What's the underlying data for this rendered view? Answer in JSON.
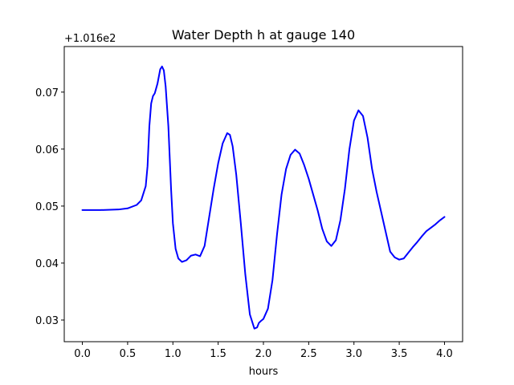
{
  "chart_data": {
    "type": "line",
    "title": "Water Depth h at gauge 140",
    "xlabel": "hours",
    "ylabel": "",
    "y_offset_label": "+1.016e2",
    "xlim": [
      -0.2,
      4.2
    ],
    "ylim": [
      0.0262,
      0.078
    ],
    "x_ticks": [
      0.0,
      0.5,
      1.0,
      1.5,
      2.0,
      2.5,
      3.0,
      3.5,
      4.0
    ],
    "x_tick_labels": [
      "0.0",
      "0.5",
      "1.0",
      "1.5",
      "2.0",
      "2.5",
      "3.0",
      "3.5",
      "4.0"
    ],
    "y_ticks": [
      0.03,
      0.04,
      0.05,
      0.06,
      0.07
    ],
    "y_tick_labels": [
      "0.03",
      "0.04",
      "0.05",
      "0.06",
      "0.07"
    ],
    "grid": false,
    "legend": "none",
    "series": [
      {
        "color": "#0000ff",
        "x": [
          0.0,
          0.2,
          0.4,
          0.5,
          0.6,
          0.65,
          0.7,
          0.72,
          0.74,
          0.76,
          0.78,
          0.8,
          0.83,
          0.86,
          0.88,
          0.9,
          0.92,
          0.95,
          0.98,
          1.0,
          1.03,
          1.06,
          1.1,
          1.15,
          1.2,
          1.25,
          1.3,
          1.35,
          1.4,
          1.45,
          1.5,
          1.55,
          1.6,
          1.63,
          1.66,
          1.7,
          1.75,
          1.8,
          1.85,
          1.9,
          1.93,
          1.95,
          1.97,
          2.0,
          2.05,
          2.1,
          2.15,
          2.2,
          2.25,
          2.3,
          2.35,
          2.4,
          2.45,
          2.5,
          2.55,
          2.6,
          2.65,
          2.7,
          2.75,
          2.8,
          2.85,
          2.9,
          2.95,
          3.0,
          3.05,
          3.1,
          3.15,
          3.2,
          3.25,
          3.3,
          3.35,
          3.4,
          3.45,
          3.5,
          3.55,
          3.6,
          3.65,
          3.7,
          3.75,
          3.8,
          3.85,
          3.9,
          3.95,
          4.0
        ],
        "values": [
          0.0493,
          0.0493,
          0.0494,
          0.0496,
          0.0502,
          0.051,
          0.0535,
          0.057,
          0.064,
          0.068,
          0.0693,
          0.0698,
          0.0715,
          0.074,
          0.0745,
          0.0738,
          0.071,
          0.064,
          0.053,
          0.047,
          0.0425,
          0.0408,
          0.0402,
          0.0405,
          0.0413,
          0.0415,
          0.0412,
          0.043,
          0.048,
          0.053,
          0.0575,
          0.061,
          0.0628,
          0.0625,
          0.0605,
          0.0555,
          0.047,
          0.038,
          0.031,
          0.0285,
          0.0287,
          0.0295,
          0.0298,
          0.0302,
          0.032,
          0.037,
          0.045,
          0.052,
          0.0565,
          0.059,
          0.0599,
          0.0592,
          0.0572,
          0.0548,
          0.052,
          0.0492,
          0.046,
          0.0438,
          0.043,
          0.044,
          0.0475,
          0.053,
          0.06,
          0.065,
          0.0668,
          0.0658,
          0.062,
          0.0565,
          0.0525,
          0.049,
          0.0455,
          0.042,
          0.041,
          0.0406,
          0.0408,
          0.0418,
          0.0428,
          0.0437,
          0.0447,
          0.0456,
          0.0462,
          0.0468,
          0.0475,
          0.0481
        ]
      }
    ]
  }
}
